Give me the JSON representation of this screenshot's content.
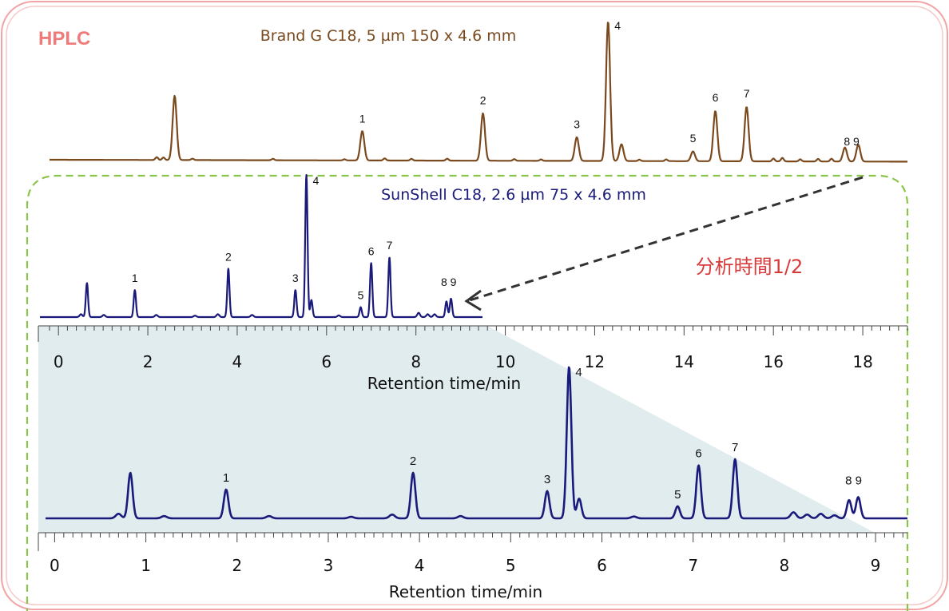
{
  "header": {
    "hplc_label": "HPLC",
    "hplc_color": "#f07a7a"
  },
  "annotation": {
    "text": "分析時間1/2",
    "color": "#d83a3a"
  },
  "colors": {
    "brand_trace": "#7a4a1e",
    "sunshell_trace": "#1a1a7a",
    "frame_border": "#f2a3a3",
    "dash_border": "#8cc34a",
    "shade": "#c9dce2"
  },
  "chart_data": [
    {
      "id": "brand_g",
      "type": "line",
      "title": "Brand G C18, 5 µm 150 x 4.6 mm",
      "xlabel": "Retention time/min",
      "xlim": [
        -0.2,
        19.0
      ],
      "x_ticks": [
        "0",
        "2",
        "4",
        "6",
        "8",
        "10",
        "12",
        "14",
        "16",
        "18"
      ],
      "baseline_drift": 0.08,
      "peaks": [
        {
          "x": 2.6,
          "h": 0.46,
          "w": 0.045,
          "label": ""
        },
        {
          "x": 6.8,
          "h": 0.21,
          "w": 0.045,
          "label": "1"
        },
        {
          "x": 9.5,
          "h": 0.34,
          "w": 0.045,
          "label": "2"
        },
        {
          "x": 11.6,
          "h": 0.17,
          "w": 0.045,
          "label": "3"
        },
        {
          "x": 12.3,
          "h": 1.0,
          "w": 0.045,
          "label": "4"
        },
        {
          "x": 12.6,
          "h": 0.12,
          "w": 0.045,
          "label": ""
        },
        {
          "x": 14.2,
          "h": 0.07,
          "w": 0.045,
          "label": "5"
        },
        {
          "x": 14.7,
          "h": 0.36,
          "w": 0.045,
          "label": "6"
        },
        {
          "x": 15.4,
          "h": 0.39,
          "w": 0.045,
          "label": "7"
        },
        {
          "x": 17.6,
          "h": 0.1,
          "w": 0.045,
          "label": ""
        },
        {
          "x": 17.9,
          "h": 0.12,
          "w": 0.045,
          "label": ""
        }
      ],
      "group_label": {
        "text": "8 9",
        "x": 17.75
      },
      "noise": [
        [
          2.2,
          0.02
        ],
        [
          2.35,
          0.018
        ],
        [
          3.0,
          0.01
        ],
        [
          4.8,
          0.01
        ],
        [
          6.4,
          0.008
        ],
        [
          7.3,
          0.015
        ],
        [
          7.9,
          0.012
        ],
        [
          8.7,
          0.014
        ],
        [
          10.2,
          0.012
        ],
        [
          10.8,
          0.01
        ],
        [
          13.0,
          0.01
        ],
        [
          13.6,
          0.012
        ],
        [
          16.0,
          0.02
        ],
        [
          16.2,
          0.025
        ],
        [
          16.6,
          0.015
        ],
        [
          17.0,
          0.018
        ],
        [
          17.3,
          0.02
        ]
      ]
    },
    {
      "id": "sunshell_inset",
      "type": "line",
      "title": "SunShell C18, 2.6 µm 75 x 4.6 mm",
      "xlabel": "",
      "xlim": [
        -0.2,
        9.5
      ],
      "peaks": [
        {
          "x": 0.83,
          "h": 0.24,
          "w": 0.025,
          "label": ""
        },
        {
          "x": 1.88,
          "h": 0.19,
          "w": 0.025,
          "label": "1"
        },
        {
          "x": 3.93,
          "h": 0.34,
          "w": 0.025,
          "label": "2"
        },
        {
          "x": 5.4,
          "h": 0.19,
          "w": 0.025,
          "label": "3"
        },
        {
          "x": 5.64,
          "h": 1.0,
          "w": 0.025,
          "label": "4"
        },
        {
          "x": 5.75,
          "h": 0.12,
          "w": 0.025,
          "label": ""
        },
        {
          "x": 6.83,
          "h": 0.07,
          "w": 0.025,
          "label": "5"
        },
        {
          "x": 7.06,
          "h": 0.38,
          "w": 0.025,
          "label": "6"
        },
        {
          "x": 7.46,
          "h": 0.42,
          "w": 0.025,
          "label": "7"
        },
        {
          "x": 8.71,
          "h": 0.11,
          "w": 0.025,
          "label": ""
        },
        {
          "x": 8.81,
          "h": 0.13,
          "w": 0.025,
          "label": ""
        }
      ],
      "group_label": {
        "text": "8 9",
        "x": 8.76
      },
      "noise": [
        [
          0.7,
          0.02
        ],
        [
          1.2,
          0.015
        ],
        [
          2.35,
          0.015
        ],
        [
          3.2,
          0.01
        ],
        [
          3.7,
          0.02
        ],
        [
          4.45,
          0.015
        ],
        [
          6.35,
          0.012
        ],
        [
          8.1,
          0.03
        ],
        [
          8.3,
          0.02
        ],
        [
          8.45,
          0.02
        ]
      ]
    },
    {
      "id": "sunshell_main",
      "type": "line",
      "title": "",
      "xlabel": "Retention time/min",
      "xlim": [
        -0.1,
        9.35
      ],
      "x_ticks": [
        "0",
        "1",
        "2",
        "3",
        "4",
        "5",
        "6",
        "7",
        "8",
        "9"
      ],
      "peaks": [
        {
          "x": 0.83,
          "h": 0.3,
          "w": 0.025,
          "label": ""
        },
        {
          "x": 1.88,
          "h": 0.19,
          "w": 0.025,
          "label": "1"
        },
        {
          "x": 3.93,
          "h": 0.3,
          "w": 0.025,
          "label": "2"
        },
        {
          "x": 5.4,
          "h": 0.18,
          "w": 0.025,
          "label": "3"
        },
        {
          "x": 5.64,
          "h": 1.0,
          "w": 0.025,
          "label": "4"
        },
        {
          "x": 5.75,
          "h": 0.13,
          "w": 0.025,
          "label": ""
        },
        {
          "x": 6.83,
          "h": 0.08,
          "w": 0.025,
          "label": "5"
        },
        {
          "x": 7.06,
          "h": 0.35,
          "w": 0.025,
          "label": "6"
        },
        {
          "x": 7.46,
          "h": 0.39,
          "w": 0.025,
          "label": "7"
        },
        {
          "x": 8.71,
          "h": 0.12,
          "w": 0.025,
          "label": ""
        },
        {
          "x": 8.81,
          "h": 0.14,
          "w": 0.025,
          "label": ""
        }
      ],
      "group_label": {
        "text": "8 9",
        "x": 8.76
      },
      "noise": [
        [
          0.7,
          0.03
        ],
        [
          1.2,
          0.015
        ],
        [
          2.35,
          0.015
        ],
        [
          3.25,
          0.01
        ],
        [
          3.7,
          0.025
        ],
        [
          4.45,
          0.015
        ],
        [
          6.35,
          0.012
        ],
        [
          8.1,
          0.04
        ],
        [
          8.25,
          0.025
        ],
        [
          8.4,
          0.03
        ],
        [
          8.55,
          0.02
        ]
      ]
    }
  ]
}
